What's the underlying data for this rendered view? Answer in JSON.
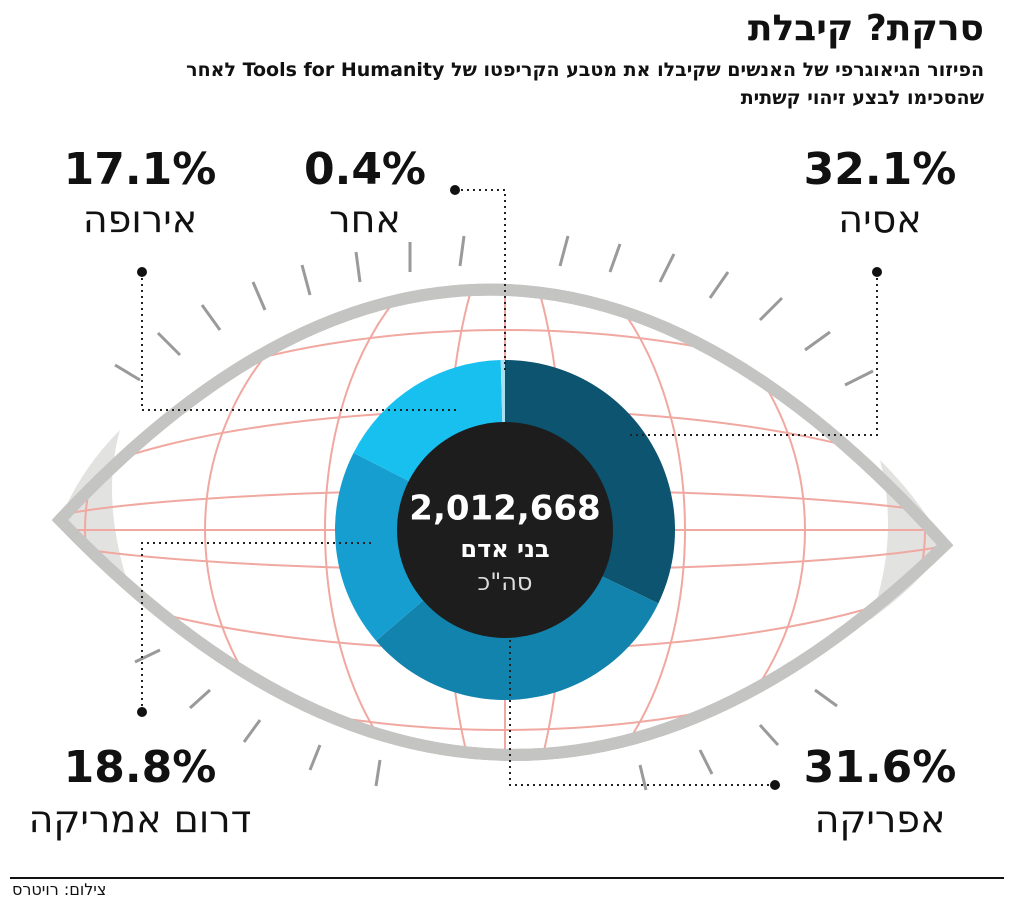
{
  "chart_data": {
    "type": "donut",
    "title": "סרקת? קיבלת",
    "subtitle": "הפיזור הגיאוגרפי של האנשים שקיבלו את מטבע הקריפטו של Tools for Humanity לאחר שהסכימו לבצע זיהוי קשתית",
    "categories": [
      "אסיה",
      "אפריקה",
      "דרום אמריקה",
      "אירופה",
      "אחר"
    ],
    "values": [
      32.1,
      31.6,
      18.8,
      17.1,
      0.4
    ],
    "value_labels": [
      "32.1%",
      "31.6%",
      "18.8%",
      "17.1%",
      "0.4%"
    ],
    "colors": [
      "#0c5470",
      "#1283ad",
      "#179ed0",
      "#18c0f0",
      "#a8def0"
    ],
    "center_total": "2,012,668",
    "center_unit": "בני אדם",
    "center_caption": "סה\"כ",
    "credit": "צילום: רויטרס"
  }
}
